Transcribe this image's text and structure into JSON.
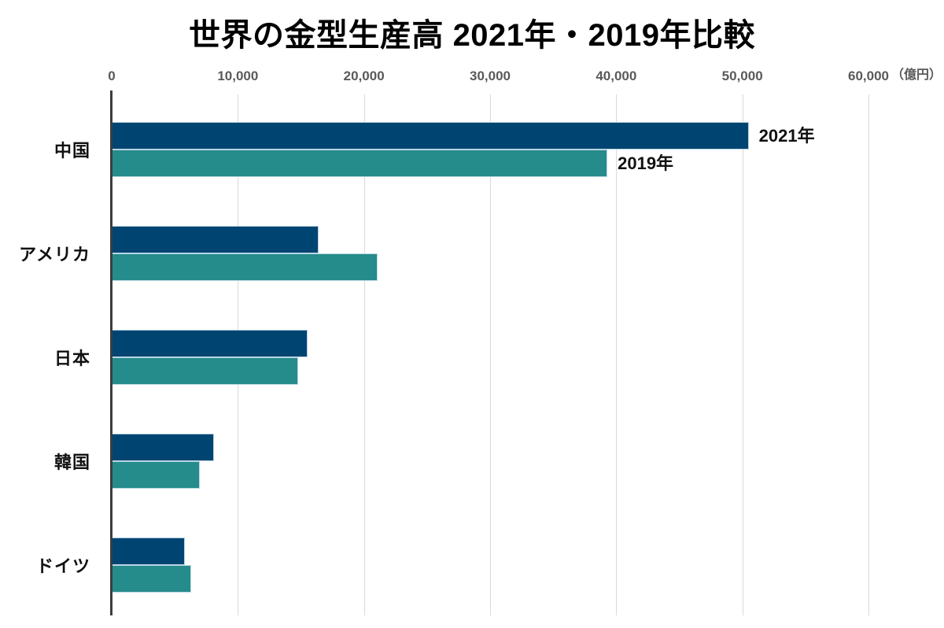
{
  "chart_data": {
    "type": "bar",
    "orientation": "horizontal",
    "title": "世界の金型生産高 2021年・2019年比較",
    "categories": [
      "中国",
      "アメリカ",
      "日本",
      "韓国",
      "ドイツ"
    ],
    "series": [
      {
        "name": "2021年",
        "color": "#004572",
        "values": [
          50500,
          16400,
          15500,
          8100,
          5800
        ]
      },
      {
        "name": "2019年",
        "color": "#268B8B",
        "values": [
          39300,
          21100,
          14800,
          7000,
          6300
        ]
      }
    ],
    "x_axis": {
      "position": "top",
      "max": 60000,
      "ticks": [
        0,
        10000,
        20000,
        30000,
        40000,
        50000,
        60000
      ],
      "tick_labels": [
        "0",
        "10,000",
        "20,000",
        "30,000",
        "40,000",
        "50,000",
        "60,000"
      ],
      "unit_label": "（億円）"
    },
    "annotations": [
      {
        "text": "2021年",
        "category_index": 0,
        "series_index": 0
      },
      {
        "text": "2019年",
        "category_index": 0,
        "series_index": 1
      }
    ],
    "grid": true,
    "legend": "inline-annotations",
    "colors": {
      "gridline": "#d9d9d9",
      "axis_line": "#3d3d3d",
      "tick_label": "#595959",
      "title": "#000000",
      "category_label": "#111111"
    }
  }
}
